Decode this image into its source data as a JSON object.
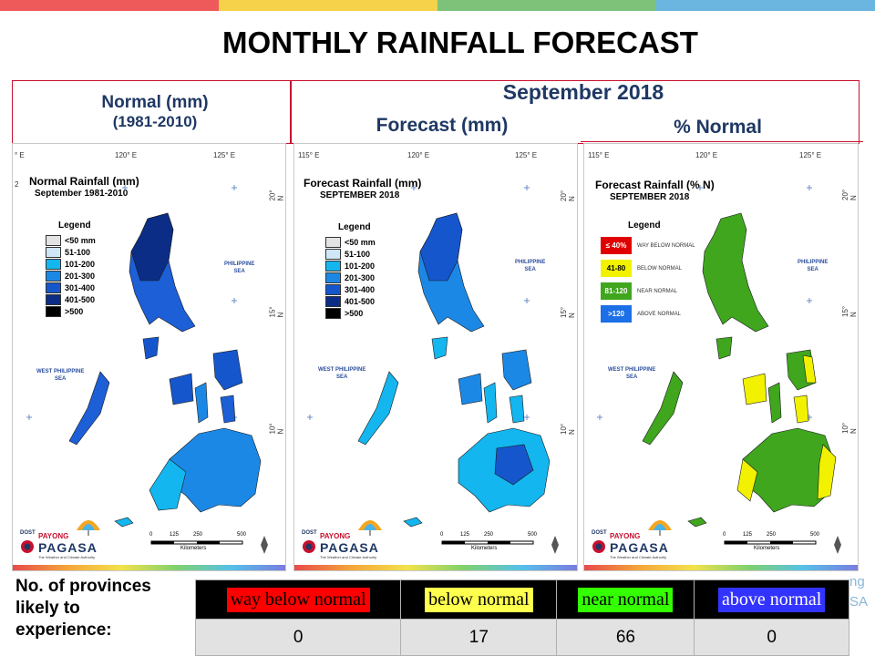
{
  "title": "MONTHLY RAINFALL FORECAST",
  "colors": {
    "topbar": [
      "#ee5a5a",
      "#f5d24a",
      "#7ec27a",
      "#6bb6e0"
    ],
    "frame": "#c8102e",
    "header_text": "#1f3864",
    "normal_scale": [
      "#e3e3e3",
      "#cfe6f7",
      "#13b6ee",
      "#1c88e6",
      "#1656cc",
      "#0b2d86",
      "#000000"
    ],
    "percent_scale": [
      "#e00000",
      "#f2f200",
      "#3fa61e",
      "#1c6fe6"
    ]
  },
  "headers": {
    "normal": "Normal (mm)",
    "normal_period": "(1981-2010)",
    "month": "September 2018",
    "forecast": "Forecast (mm)",
    "percent": "% Normal"
  },
  "panels": {
    "normal": {
      "title": "Normal Rainfall (mm)",
      "subtitle": "September 1981-2010"
    },
    "forecast": {
      "title": "Forecast Rainfall (mm)",
      "subtitle": "SEPTEMBER 2018"
    },
    "percent": {
      "title": "Forecast Rainfall (% N)",
      "subtitle": "SEPTEMBER 2018"
    }
  },
  "legend": {
    "title": "Legend",
    "mm_classes": [
      "<50 mm",
      "51-100",
      "101-200",
      "201-300",
      "301-400",
      "401-500",
      ">500"
    ],
    "mm_classes_forecast": [
      "<50 mm",
      "51-100",
      "101-200",
      "201-300",
      "301-400",
      "401-500",
      ">500"
    ],
    "percent_classes": [
      {
        "range": "≤ 40%",
        "desc": "WAY BELOW NORMAL"
      },
      {
        "range": "41-80",
        "desc": "BELOW NORMAL"
      },
      {
        "range": "81-120",
        "desc": "NEAR NORMAL"
      },
      {
        "range": ">120",
        "desc": "ABOVE NORMAL"
      }
    ]
  },
  "coords": {
    "lon_115": "115° E",
    "lon_120": "120° E",
    "lon_125": "125° E",
    "lat_20": "20° N",
    "lat_15": "15° N",
    "lat_10": "10° N",
    "lon_115_cut": "° E",
    "lat_cut": "2"
  },
  "seas": {
    "philippine_sea": [
      "PHILIPPINE",
      "SEA"
    ],
    "west_philippine_sea": [
      "WEST PHILIPPINE",
      "SEA"
    ]
  },
  "scale_bar": {
    "ticks": [
      "0",
      "125",
      "250",
      "500"
    ],
    "unit": "Kilometers"
  },
  "logo": {
    "dost": "DOST",
    "payong": "PAYONG",
    "pagasa": "PAGASA",
    "tagline": "The Weather and Climate Authority"
  },
  "summary": {
    "question": [
      "No. of provinces",
      "likely to",
      "experience:"
    ],
    "categories": [
      {
        "label": "way below normal",
        "color": "#ff0000"
      },
      {
        "label": "below normal",
        "color": "#ffff4d"
      },
      {
        "label": "near normal",
        "color": "#33ff00"
      },
      {
        "label": "above normal",
        "color": "#3333ff"
      }
    ],
    "counts": [
      0,
      17,
      66,
      0
    ]
  },
  "bg_fragments": {
    "right_top": "ng",
    "right_bottom": "SA"
  }
}
